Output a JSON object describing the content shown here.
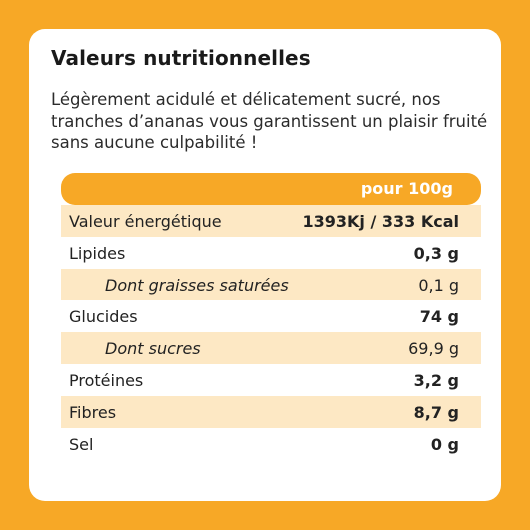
{
  "card": {
    "title": "Valeurs nutritionnelles",
    "description": "Légèrement acidulé et délicatement sucré, nos tranches d’ananas vous garantissent un plaisir fruité sans aucune culpabilité !"
  },
  "table": {
    "header": "pour 100g",
    "rows": [
      {
        "label": "Valeur énergétique",
        "value": "1393Kj / 333 Kcal"
      },
      {
        "label": "Lipides",
        "value": "0,3 g"
      },
      {
        "label": "Dont graisses saturées",
        "value": "0,1 g"
      },
      {
        "label": "Glucides",
        "value": "74 g"
      },
      {
        "label": "Dont sucres",
        "value": "69,9 g"
      },
      {
        "label": "Protéines",
        "value": "3,2 g"
      },
      {
        "label": "Fibres",
        "value": "8,7 g"
      },
      {
        "label": "Sel",
        "value": "0 g"
      }
    ]
  },
  "colors": {
    "accent": "#f7a826",
    "row_shade": "#fde8c4",
    "card": "#ffffff"
  }
}
